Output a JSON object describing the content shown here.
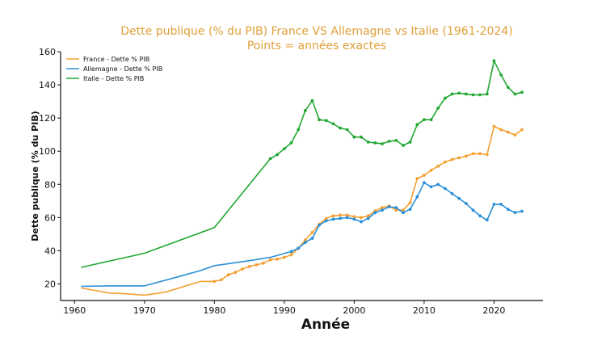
{
  "chart_data": {
    "type": "line",
    "title": "Dette publique (% du PIB) France VS Allemagne vs Italie (1961-2024)",
    "subtitle": "Points = années exactes",
    "xlabel": "Année",
    "ylabel": "Dette publique (% du PIB)",
    "xlim": [
      1958,
      2027
    ],
    "ylim": [
      10,
      160
    ],
    "xticks": [
      1960,
      1970,
      1980,
      1990,
      2000,
      2010,
      2020
    ],
    "yticks": [
      20,
      40,
      60,
      80,
      100,
      120,
      140,
      160
    ],
    "grid": false,
    "legend_position": "top-left",
    "series": [
      {
        "name": "France - Dette % PIB",
        "color": "#f5a033",
        "points": [
          [
            1961,
            17.5
          ],
          [
            1965,
            14.5
          ],
          [
            1967,
            14.2
          ],
          [
            1970,
            13.2
          ],
          [
            1973,
            15.0
          ],
          [
            1978,
            21.5
          ],
          [
            1980,
            21.5
          ],
          [
            1981,
            22.5
          ],
          [
            1982,
            25.5
          ],
          [
            1983,
            27.0
          ],
          [
            1984,
            29.0
          ],
          [
            1985,
            30.5
          ],
          [
            1986,
            31.5
          ],
          [
            1987,
            32.5
          ],
          [
            1988,
            34.5
          ],
          [
            1989,
            35.0
          ],
          [
            1990,
            36.0
          ],
          [
            1991,
            37.5
          ],
          [
            1992,
            41.5
          ],
          [
            1993,
            46.5
          ],
          [
            1994,
            51.0
          ],
          [
            1995,
            56.0
          ],
          [
            1996,
            59.5
          ],
          [
            1997,
            61.0
          ],
          [
            1998,
            61.5
          ],
          [
            1999,
            61.5
          ],
          [
            2000,
            60.5
          ],
          [
            2001,
            60.0
          ],
          [
            2002,
            61.0
          ],
          [
            2003,
            64.0
          ],
          [
            2004,
            66.0
          ],
          [
            2005,
            67.0
          ],
          [
            2006,
            64.5
          ],
          [
            2007,
            64.5
          ],
          [
            2008,
            69.0
          ],
          [
            2009,
            83.5
          ],
          [
            2010,
            85.5
          ],
          [
            2011,
            88.5
          ],
          [
            2012,
            91.0
          ],
          [
            2013,
            93.5
          ],
          [
            2014,
            95.0
          ],
          [
            2015,
            96.0
          ],
          [
            2016,
            97.0
          ],
          [
            2017,
            98.5
          ],
          [
            2018,
            98.5
          ],
          [
            2019,
            98.0
          ],
          [
            2020,
            115.0
          ],
          [
            2021,
            113.0
          ],
          [
            2022,
            111.5
          ],
          [
            2023,
            109.8
          ],
          [
            2024,
            113.0
          ]
        ],
        "markers_from": 1980
      },
      {
        "name": "Allemagne - Dette % PIB",
        "color": "#2a8fd8",
        "points": [
          [
            1961,
            18.5
          ],
          [
            1965,
            18.8
          ],
          [
            1970,
            18.8
          ],
          [
            1975,
            24.5
          ],
          [
            1978,
            28.0
          ],
          [
            1980,
            31.0
          ],
          [
            1985,
            34.0
          ],
          [
            1988,
            36.0
          ],
          [
            1991,
            39.5
          ],
          [
            1992,
            41.5
          ],
          [
            1993,
            45.0
          ],
          [
            1994,
            47.5
          ],
          [
            1995,
            55.5
          ],
          [
            1996,
            58.0
          ],
          [
            1997,
            59.0
          ],
          [
            1998,
            59.5
          ],
          [
            1999,
            60.0
          ],
          [
            2000,
            59.0
          ],
          [
            2001,
            57.5
          ],
          [
            2002,
            59.5
          ],
          [
            2003,
            63.0
          ],
          [
            2004,
            64.5
          ],
          [
            2005,
            66.5
          ],
          [
            2006,
            66.0
          ],
          [
            2007,
            63.0
          ],
          [
            2008,
            65.0
          ],
          [
            2009,
            72.5
          ],
          [
            2010,
            81.0
          ],
          [
            2011,
            78.5
          ],
          [
            2012,
            80.0
          ],
          [
            2013,
            77.5
          ],
          [
            2014,
            74.5
          ],
          [
            2015,
            71.5
          ],
          [
            2016,
            68.5
          ],
          [
            2017,
            64.5
          ],
          [
            2018,
            61.0
          ],
          [
            2019,
            58.5
          ],
          [
            2020,
            68.0
          ],
          [
            2021,
            68.0
          ],
          [
            2022,
            65.0
          ],
          [
            2023,
            63.0
          ],
          [
            2024,
            63.8
          ]
        ],
        "markers_from": 1991
      },
      {
        "name": "Italie - Dette % PIB",
        "color": "#22a832",
        "points": [
          [
            1961,
            30.0
          ],
          [
            1970,
            38.5
          ],
          [
            1980,
            54.0
          ],
          [
            1988,
            95.5
          ],
          [
            1989,
            98.0
          ],
          [
            1990,
            101.5
          ],
          [
            1991,
            105.0
          ],
          [
            1992,
            113.0
          ],
          [
            1993,
            124.5
          ],
          [
            1994,
            130.5
          ],
          [
            1995,
            119.0
          ],
          [
            1996,
            118.5
          ],
          [
            1997,
            116.5
          ],
          [
            1998,
            114.0
          ],
          [
            1999,
            113.0
          ],
          [
            2000,
            108.5
          ],
          [
            2001,
            108.5
          ],
          [
            2002,
            105.5
          ],
          [
            2003,
            105.0
          ],
          [
            2004,
            104.5
          ],
          [
            2005,
            106.0
          ],
          [
            2006,
            106.5
          ],
          [
            2007,
            103.5
          ],
          [
            2008,
            105.5
          ],
          [
            2009,
            116.0
          ],
          [
            2010,
            119.0
          ],
          [
            2011,
            119.0
          ],
          [
            2012,
            126.0
          ],
          [
            2013,
            132.0
          ],
          [
            2014,
            134.5
          ],
          [
            2015,
            135.0
          ],
          [
            2016,
            134.5
          ],
          [
            2017,
            134.0
          ],
          [
            2018,
            134.0
          ],
          [
            2019,
            134.5
          ],
          [
            2020,
            154.5
          ],
          [
            2021,
            146.0
          ],
          [
            2022,
            138.5
          ],
          [
            2023,
            134.5
          ],
          [
            2024,
            135.5
          ]
        ],
        "markers_from": 1988
      }
    ]
  }
}
